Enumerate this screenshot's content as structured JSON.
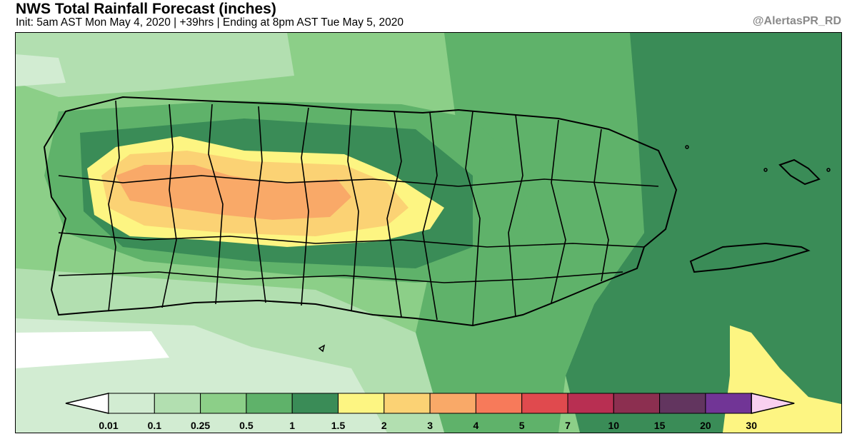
{
  "header": {
    "title": "NWS Total Rainfall Forecast (inches)",
    "subtitle": "Init: 5am AST Mon May 4, 2020 | +39hrs | Ending at 8pm AST Tue May 5, 2020",
    "handle": "@AlertasPR_RD"
  },
  "legend": {
    "bins": [
      {
        "color": "#d2ecd2"
      },
      {
        "color": "#b2dfb0"
      },
      {
        "color": "#8ccf88"
      },
      {
        "color": "#5fb26a"
      },
      {
        "color": "#3a8c57"
      },
      {
        "color": "#fdf582"
      },
      {
        "color": "#fbd274"
      },
      {
        "color": "#f9a968"
      },
      {
        "color": "#f77a5a"
      },
      {
        "color": "#e04a4e"
      },
      {
        "color": "#b82f52"
      },
      {
        "color": "#8c2f50"
      },
      {
        "color": "#62355f"
      },
      {
        "color": "#713596"
      }
    ],
    "under_color": "#ffffff",
    "over_color": "#f9d0f0",
    "labels": [
      "0.01",
      "0.1",
      "0.25",
      "0.5",
      "1",
      "1.5",
      "2",
      "3",
      "4",
      "5",
      "7",
      "10",
      "15",
      "20",
      "30"
    ]
  },
  "map": {
    "land_regions": [
      "Puerto Rico",
      "Vieques",
      "Culebra"
    ]
  }
}
